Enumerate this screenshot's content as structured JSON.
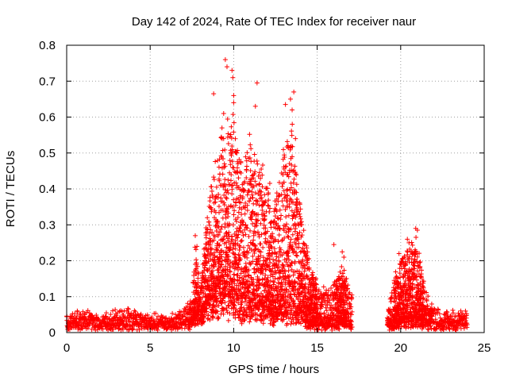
{
  "chart_data": {
    "type": "scatter",
    "title": "Day 142 of 2024, Rate Of TEC Index for receiver naur",
    "xlabel": "GPS time / hours",
    "ylabel": "ROTI / TECUs",
    "xlim": [
      0,
      25
    ],
    "ylim": [
      0,
      0.8
    ],
    "xticks": [
      "0",
      "5",
      "10",
      "15",
      "20",
      "25"
    ],
    "yticks": [
      "0",
      "0.1",
      "0.2",
      "0.3",
      "0.4",
      "0.5",
      "0.6",
      "0.7",
      "0.8"
    ],
    "grid": true,
    "marker": "+",
    "color": "#ff0000",
    "envelope": [
      {
        "x": 0.0,
        "base": 0.02,
        "upper": 0.05
      },
      {
        "x": 1.0,
        "base": 0.02,
        "upper": 0.06
      },
      {
        "x": 2.0,
        "base": 0.02,
        "upper": 0.05
      },
      {
        "x": 3.5,
        "base": 0.02,
        "upper": 0.07
      },
      {
        "x": 5.0,
        "base": 0.02,
        "upper": 0.05
      },
      {
        "x": 6.5,
        "base": 0.02,
        "upper": 0.05
      },
      {
        "x": 7.5,
        "base": 0.03,
        "upper": 0.09
      },
      {
        "x": 7.7,
        "base": 0.05,
        "upper": 0.26
      },
      {
        "x": 8.0,
        "base": 0.04,
        "upper": 0.12
      },
      {
        "x": 8.5,
        "base": 0.08,
        "upper": 0.38
      },
      {
        "x": 9.0,
        "base": 0.12,
        "upper": 0.5
      },
      {
        "x": 9.5,
        "base": 0.1,
        "upper": 0.58
      },
      {
        "x": 10.0,
        "base": 0.08,
        "upper": 0.6
      },
      {
        "x": 10.5,
        "base": 0.08,
        "upper": 0.45
      },
      {
        "x": 11.0,
        "base": 0.08,
        "upper": 0.55
      },
      {
        "x": 11.5,
        "base": 0.07,
        "upper": 0.48
      },
      {
        "x": 12.0,
        "base": 0.06,
        "upper": 0.43
      },
      {
        "x": 12.5,
        "base": 0.05,
        "upper": 0.38
      },
      {
        "x": 13.0,
        "base": 0.06,
        "upper": 0.5
      },
      {
        "x": 13.5,
        "base": 0.06,
        "upper": 0.6
      },
      {
        "x": 14.0,
        "base": 0.05,
        "upper": 0.35
      },
      {
        "x": 14.5,
        "base": 0.03,
        "upper": 0.2
      },
      {
        "x": 15.0,
        "base": 0.02,
        "upper": 0.15
      },
      {
        "x": 15.5,
        "base": 0.02,
        "upper": 0.12
      },
      {
        "x": 16.0,
        "base": 0.02,
        "upper": 0.14
      },
      {
        "x": 16.5,
        "base": 0.03,
        "upper": 0.18
      },
      {
        "x": 17.0,
        "base": 0.02,
        "upper": 0.12
      },
      {
        "x": 19.3,
        "base": 0.02,
        "upper": 0.08
      },
      {
        "x": 19.8,
        "base": 0.03,
        "upper": 0.2
      },
      {
        "x": 20.3,
        "base": 0.03,
        "upper": 0.22
      },
      {
        "x": 20.9,
        "base": 0.04,
        "upper": 0.27
      },
      {
        "x": 21.5,
        "base": 0.03,
        "upper": 0.12
      },
      {
        "x": 22.0,
        "base": 0.02,
        "upper": 0.07
      },
      {
        "x": 23.0,
        "base": 0.02,
        "upper": 0.06
      },
      {
        "x": 24.0,
        "base": 0.02,
        "upper": 0.06
      }
    ],
    "gaps": [
      [
        17.1,
        19.2
      ]
    ],
    "outliers": [
      {
        "x": 7.7,
        "y": 0.27
      },
      {
        "x": 7.8,
        "y": 0.24
      },
      {
        "x": 7.7,
        "y": 0.19
      },
      {
        "x": 8.8,
        "y": 0.665
      },
      {
        "x": 9.3,
        "y": 0.57
      },
      {
        "x": 9.4,
        "y": 0.54
      },
      {
        "x": 9.5,
        "y": 0.76
      },
      {
        "x": 9.6,
        "y": 0.74
      },
      {
        "x": 9.9,
        "y": 0.73
      },
      {
        "x": 9.95,
        "y": 0.71
      },
      {
        "x": 10.0,
        "y": 0.66
      },
      {
        "x": 10.0,
        "y": 0.64
      },
      {
        "x": 9.4,
        "y": 0.61
      },
      {
        "x": 11.4,
        "y": 0.695
      },
      {
        "x": 11.3,
        "y": 0.63
      },
      {
        "x": 13.1,
        "y": 0.635
      },
      {
        "x": 13.4,
        "y": 0.65
      },
      {
        "x": 13.6,
        "y": 0.67
      },
      {
        "x": 13.5,
        "y": 0.62
      },
      {
        "x": 13.7,
        "y": 0.54
      },
      {
        "x": 16.0,
        "y": 0.245
      },
      {
        "x": 16.5,
        "y": 0.225
      },
      {
        "x": 16.6,
        "y": 0.21
      },
      {
        "x": 19.9,
        "y": 0.22
      },
      {
        "x": 20.4,
        "y": 0.26
      },
      {
        "x": 20.5,
        "y": 0.25
      },
      {
        "x": 20.9,
        "y": 0.29
      },
      {
        "x": 21.0,
        "y": 0.285
      },
      {
        "x": 20.3,
        "y": 0.19
      }
    ]
  }
}
